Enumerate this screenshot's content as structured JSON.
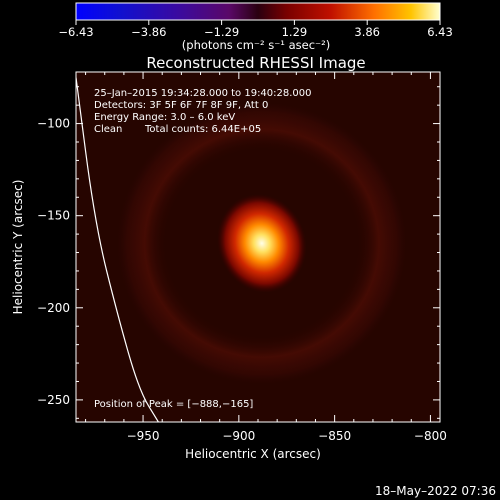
{
  "colorbar": {
    "tick_labels": [
      "−6.43",
      "−3.86",
      "−1.29",
      "1.29",
      "3.86",
      "6.43"
    ],
    "units_text": "(photons cm⁻² s⁻¹ asec⁻²)",
    "range": [
      -6.43,
      6.43
    ]
  },
  "chart_data": {
    "type": "heatmap",
    "title": "Reconstructed RHESSI Image",
    "xlabel": "Heliocentric X (arcsec)",
    "ylabel": "Heliocentric Y (arcsec)",
    "xlim": [
      -985,
      -795
    ],
    "ylim": [
      -262,
      -72
    ],
    "x_ticks": [
      -950,
      -900,
      -850,
      -800
    ],
    "x_tick_labels": [
      "−950",
      "−900",
      "−850",
      "−800"
    ],
    "y_ticks": [
      -100,
      -150,
      -200,
      -250
    ],
    "y_tick_labels": [
      "−100",
      "−150",
      "−200",
      "−250"
    ],
    "peak": {
      "x": -888,
      "y": -165,
      "value": 6.43
    },
    "limb_curve": [
      [
        -985,
        -75
      ],
      [
        -975,
        -155
      ],
      [
        -963,
        -205
      ],
      [
        -952,
        -245
      ],
      [
        -942,
        -262
      ]
    ],
    "annotations": {
      "line1": "25–Jan–2015 19:34:28.000 to 19:40:28.000",
      "line2": "Detectors: 3F 5F 6F 7F 8F 9F, Att 0",
      "line3": "Energy Range: 3.0 – 6.0 keV",
      "line4_label": "Clean",
      "line4_counts": "Total counts: 6.44E+05",
      "peak_text": "Position of Peak = [−888,−165]"
    }
  },
  "footer": {
    "timestamp": "18–May–2022 07:36"
  }
}
